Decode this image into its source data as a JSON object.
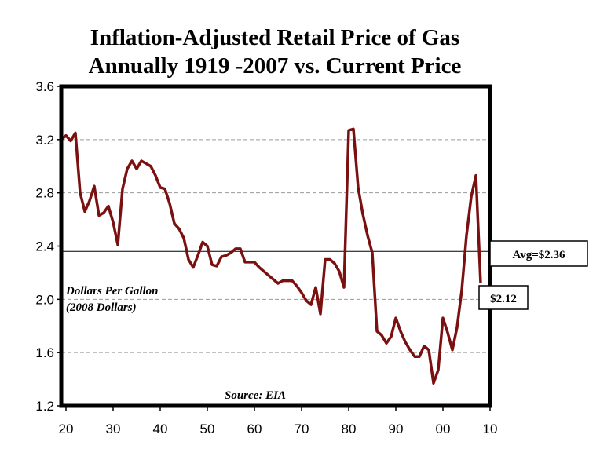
{
  "chart_data": {
    "type": "line",
    "title": "Inflation-Adjusted Retail Price of Gas",
    "subtitle": "Annually 1919 -2007 vs. Current Price",
    "ylabel": "Dollars Per Gallon",
    "ylabel2": "(2008 Dollars)",
    "source": "Source: EIA",
    "xlim": [
      1919,
      2010
    ],
    "ylim": [
      1.2,
      3.6
    ],
    "grid": true,
    "x_ticks": [
      1920,
      1930,
      1940,
      1950,
      1960,
      1970,
      1980,
      1990,
      2000,
      2010
    ],
    "x_tick_labels": [
      "20",
      "30",
      "40",
      "50",
      "60",
      "70",
      "80",
      "90",
      "00",
      "10"
    ],
    "y_ticks": [
      1.2,
      1.6,
      2.0,
      2.4,
      2.8,
      3.2,
      3.6
    ],
    "y_tick_labels": [
      "1.2",
      "1.6",
      "2.0",
      "2.4",
      "2.8",
      "3.2",
      "3.6"
    ],
    "series": [
      {
        "color": "#7a1010",
        "x": [
          1919,
          1920,
          1921,
          1922,
          1923,
          1924,
          1925,
          1926,
          1927,
          1928,
          1929,
          1930,
          1931,
          1932,
          1933,
          1934,
          1935,
          1936,
          1937,
          1938,
          1939,
          1940,
          1941,
          1942,
          1943,
          1944,
          1945,
          1946,
          1947,
          1948,
          1949,
          1950,
          1951,
          1952,
          1953,
          1954,
          1955,
          1956,
          1957,
          1958,
          1959,
          1960,
          1961,
          1962,
          1963,
          1964,
          1965,
          1966,
          1967,
          1968,
          1969,
          1970,
          1971,
          1972,
          1973,
          1974,
          1975,
          1976,
          1977,
          1978,
          1979,
          1980,
          1981,
          1982,
          1983,
          1984,
          1985,
          1986,
          1987,
          1988,
          1989,
          1990,
          1991,
          1992,
          1993,
          1994,
          1995,
          1996,
          1997,
          1998,
          1999,
          2000,
          2001,
          2002,
          2003,
          2004,
          2005,
          2006,
          2007,
          2008
        ],
        "values": [
          3.2,
          3.23,
          3.19,
          3.25,
          2.8,
          2.66,
          2.74,
          2.85,
          2.63,
          2.65,
          2.7,
          2.58,
          2.41,
          2.83,
          2.98,
          3.04,
          2.98,
          3.04,
          3.02,
          3.0,
          2.93,
          2.84,
          2.83,
          2.72,
          2.57,
          2.53,
          2.46,
          2.3,
          2.24,
          2.33,
          2.43,
          2.4,
          2.26,
          2.25,
          2.32,
          2.33,
          2.35,
          2.38,
          2.38,
          2.28,
          2.28,
          2.28,
          2.24,
          2.21,
          2.18,
          2.15,
          2.12,
          2.14,
          2.14,
          2.14,
          2.1,
          2.05,
          1.99,
          1.96,
          2.09,
          1.89,
          2.3,
          2.3,
          2.27,
          2.21,
          2.09,
          3.27,
          3.28,
          2.84,
          2.64,
          2.48,
          2.35,
          1.76,
          1.73,
          1.67,
          1.72,
          1.86,
          1.76,
          1.68,
          1.62,
          1.57,
          1.57,
          1.65,
          1.62,
          1.37,
          1.47,
          1.86,
          1.75,
          1.62,
          1.79,
          2.07,
          2.48,
          2.77,
          2.93,
          2.12
        ]
      }
    ],
    "reference_lines": [
      {
        "value": 2.36,
        "label": "Avg=$2.36"
      }
    ],
    "callouts": [
      {
        "value": 2.12,
        "label": "$2.12"
      }
    ]
  }
}
